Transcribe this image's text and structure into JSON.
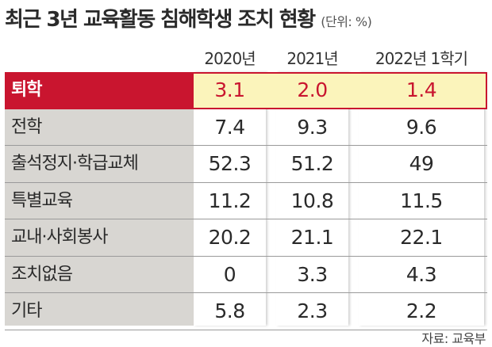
{
  "title": "최근 3년 교육활동 침해학생 조치 현황",
  "unit": "(단위: %)",
  "source": "자료: 교육부",
  "colors": {
    "highlight": "#c9152f",
    "highlight_bg": "#fbf4bb",
    "label_bg": "#d8d6d2"
  },
  "chart_data": {
    "type": "table",
    "title": "최근 3년 교육활동 침해학생 조치 현황",
    "unit": "(단위: %)",
    "columns": [
      "2020년",
      "2021년",
      "2022년 1학기"
    ],
    "rows": [
      {
        "label": "퇴학",
        "values": [
          "3.1",
          "2.0",
          "1.4"
        ],
        "highlight": true
      },
      {
        "label": "전학",
        "values": [
          "7.4",
          "9.3",
          "9.6"
        ]
      },
      {
        "label": "출석정지·학급교체",
        "values": [
          "52.3",
          "51.2",
          "49"
        ]
      },
      {
        "label": "특별교육",
        "values": [
          "11.2",
          "10.8",
          "11.5"
        ]
      },
      {
        "label": "교내·사회봉사",
        "values": [
          "20.2",
          "21.1",
          "22.1"
        ]
      },
      {
        "label": "조치없음",
        "values": [
          "0",
          "3.3",
          "4.3"
        ]
      },
      {
        "label": "기타",
        "values": [
          "5.8",
          "2.3",
          "2.2"
        ]
      }
    ],
    "source": "자료: 교육부"
  }
}
